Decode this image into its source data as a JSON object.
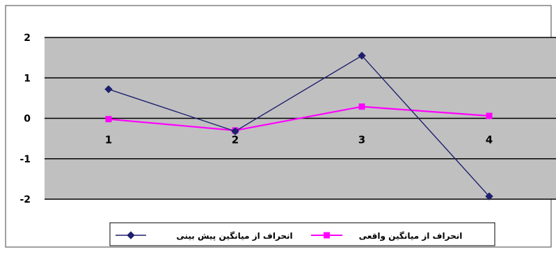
{
  "chart_data": {
    "type": "line",
    "categories": [
      "1",
      "2",
      "3",
      "4"
    ],
    "y_ticks": [
      "2",
      "1",
      "0",
      "-1",
      "-2"
    ],
    "ylim": [
      -2,
      2
    ],
    "grid": true,
    "legend_position": "bottom",
    "series": [
      {
        "name": "انحراف از میانگین پیش بینی",
        "values": [
          0.72,
          -0.32,
          1.55,
          -1.93
        ],
        "color": "#1f1f6e",
        "marker": "diamond"
      },
      {
        "name": "انحراف از میانگین واقعی",
        "values": [
          -0.02,
          -0.3,
          0.29,
          0.06
        ],
        "color": "#ff00ff",
        "marker": "square"
      }
    ]
  },
  "colors": {
    "plot_area": "#c0c0c0",
    "grid": "#000000",
    "frame": "#808080"
  }
}
